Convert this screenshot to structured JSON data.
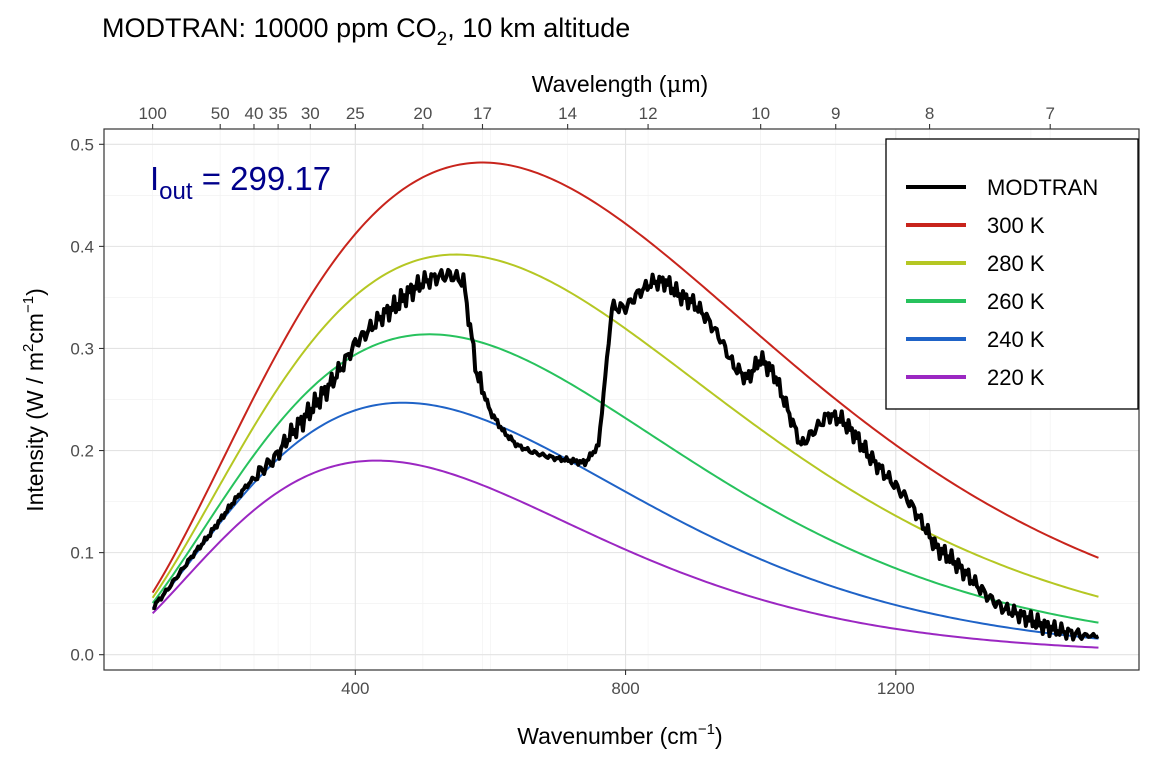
{
  "chart_data": {
    "type": "line",
    "title_main": "MODTRAN: 10000 ppm CO",
    "title_sub": "2",
    "title_rest": ", 10 km altitude",
    "xlabel_main": "Wavenumber (cm",
    "xlabel_sup": "−1",
    "xlabel_end": ")",
    "ylabel_main": "Intensity (W / m",
    "ylabel_sup1": "2",
    "ylabel_mid": "cm",
    "ylabel_sup2": "−1",
    "ylabel_end": ")",
    "x2label_main": "Wavelength (",
    "x2label_mu": "μ",
    "x2label_end": "m)",
    "xlim": [
      28,
      1560
    ],
    "ylim": [
      -0.015,
      0.515
    ],
    "x_ticks": [
      400,
      800,
      1200
    ],
    "x_tick_labels": [
      "400",
      "800",
      "1200"
    ],
    "y_ticks": [
      0.0,
      0.1,
      0.2,
      0.3,
      0.4,
      0.5
    ],
    "y_tick_labels": [
      "0.0",
      "0.1",
      "0.2",
      "0.3",
      "0.4",
      "0.5"
    ],
    "x2_ticks": [
      100,
      50,
      40,
      35,
      30,
      25,
      20,
      17,
      14,
      12,
      10,
      9,
      8,
      7
    ],
    "x2_tick_labels": [
      "100",
      "50",
      "40",
      "35",
      "30",
      "25",
      "20",
      "17",
      "14",
      "12",
      "10",
      "9",
      "8",
      "7"
    ],
    "grid": true,
    "legend_position": "top-right",
    "annotation": {
      "label_main": "I",
      "label_sub": "out",
      "label_eq": " = 299.17",
      "color": "#00008B"
    },
    "series": [
      {
        "name": "MODTRAN",
        "color": "#000000",
        "width": 4,
        "x": [
          100,
          120,
          140,
          160,
          180,
          200,
          220,
          240,
          260,
          280,
          300,
          320,
          340,
          360,
          380,
          400,
          420,
          440,
          460,
          480,
          500,
          520,
          540,
          560,
          580,
          600,
          620,
          640,
          660,
          680,
          700,
          720,
          740,
          760,
          780,
          800,
          820,
          840,
          860,
          880,
          900,
          920,
          940,
          960,
          980,
          1000,
          1020,
          1040,
          1060,
          1080,
          1100,
          1120,
          1140,
          1160,
          1180,
          1200,
          1220,
          1240,
          1260,
          1280,
          1300,
          1320,
          1340,
          1360,
          1380,
          1400,
          1420,
          1440,
          1460,
          1480,
          1500
        ],
        "y": [
          0.046,
          0.062,
          0.08,
          0.098,
          0.114,
          0.132,
          0.15,
          0.166,
          0.18,
          0.192,
          0.212,
          0.228,
          0.245,
          0.262,
          0.282,
          0.305,
          0.318,
          0.332,
          0.342,
          0.355,
          0.365,
          0.37,
          0.372,
          0.366,
          0.275,
          0.238,
          0.218,
          0.205,
          0.199,
          0.195,
          0.192,
          0.19,
          0.188,
          0.205,
          0.34,
          0.34,
          0.355,
          0.365,
          0.365,
          0.352,
          0.345,
          0.33,
          0.31,
          0.283,
          0.27,
          0.29,
          0.275,
          0.24,
          0.205,
          0.22,
          0.235,
          0.23,
          0.215,
          0.195,
          0.18,
          0.165,
          0.15,
          0.128,
          0.105,
          0.095,
          0.082,
          0.068,
          0.055,
          0.045,
          0.04,
          0.034,
          0.028,
          0.024,
          0.021,
          0.019,
          0.018
        ]
      },
      {
        "name": "300 K",
        "color": "#C8241C",
        "width": 2,
        "temperature": 300
      },
      {
        "name": "280 K",
        "color": "#B5C723",
        "width": 2,
        "temperature": 280
      },
      {
        "name": "260 K",
        "color": "#27C25D",
        "width": 2,
        "temperature": 260
      },
      {
        "name": "240 K",
        "color": "#1F63C7",
        "width": 2,
        "temperature": 240
      },
      {
        "name": "220 K",
        "color": "#9B27C2",
        "width": 2,
        "temperature": 220
      }
    ]
  }
}
